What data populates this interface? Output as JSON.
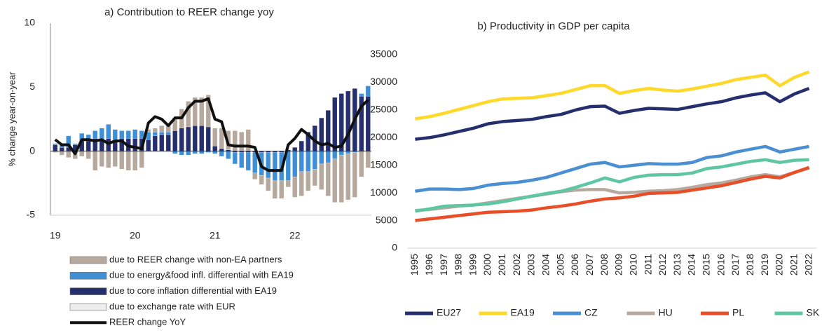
{
  "chart_data": [
    {
      "type": "bar",
      "stacked": true,
      "title": "a) Contribution to REER change yoy",
      "y_label": "% change year-on-year",
      "categories": [
        "19",
        null,
        null,
        null,
        null,
        null,
        null,
        null,
        null,
        null,
        null,
        null,
        "20",
        null,
        null,
        null,
        null,
        null,
        null,
        null,
        null,
        null,
        null,
        null,
        "21",
        null,
        null,
        null,
        null,
        null,
        null,
        null,
        null,
        null,
        null,
        null,
        "22",
        null,
        null,
        null,
        null,
        null,
        null,
        null,
        null,
        null,
        null,
        null
      ],
      "ylim": [
        -5,
        10
      ],
      "yticks": [
        -5,
        0,
        5,
        10
      ],
      "legend_position": "bottom",
      "series": [
        {
          "name": "due to REER change with non-EA partners",
          "color": "#b6a89c",
          "values": [
            -0.1,
            -0.3,
            -0.5,
            -0.6,
            -0.4,
            -0.6,
            -1.5,
            -1.2,
            -1.3,
            -1.2,
            -1.4,
            -1.5,
            -1.5,
            -1.3,
            0.2,
            0.3,
            0.5,
            0.7,
            1.0,
            1.5,
            2.0,
            2.2,
            2.2,
            2.5,
            1.4,
            1.6,
            1.5,
            1.6,
            1.5,
            1.7,
            -0.5,
            -0.7,
            -1.0,
            -1.4,
            -1.4,
            -0.5,
            -1.6,
            -1.9,
            -1.5,
            -1.3,
            -2.0,
            -2.6,
            -3.4,
            -3.7,
            -3.6,
            -3.5,
            -2.0,
            -1.3
          ]
        },
        {
          "name": "due to energy&food infl. differential with EA19",
          "color": "#3f8fd6",
          "values": [
            0.1,
            0.3,
            0.9,
            0.1,
            0.6,
            0.5,
            0.6,
            0.9,
            1.1,
            0.8,
            0.6,
            0.6,
            0.7,
            0.6,
            0.6,
            0.3,
            0.2,
            0.2,
            -0.2,
            -0.3,
            -0.3,
            -0.2,
            -0.2,
            -0.1,
            -0.2,
            -0.4,
            -0.6,
            -0.9,
            -1.2,
            -1.4,
            -1.6,
            -1.8,
            -2.0,
            -2.2,
            -2.2,
            -2.3,
            -2.0,
            -1.6,
            -1.6,
            -1.4,
            -1.0,
            -0.9,
            -0.6,
            -0.3,
            -0.2,
            -0.1,
            0.2,
            0.8
          ]
        },
        {
          "name": "due to core inflation differential with EA19",
          "color": "#262f6e",
          "values": [
            0.5,
            0.3,
            0.3,
            0.5,
            0.8,
            0.8,
            1.0,
            0.9,
            1.0,
            0.9,
            1.0,
            1.0,
            1.0,
            1.0,
            0.9,
            1.2,
            1.3,
            1.3,
            1.6,
            1.8,
            1.9,
            2.0,
            2.0,
            1.9,
            0.4,
            0.2,
            0.1,
            -0.1,
            -0.1,
            -0.1,
            -0.1,
            -0.1,
            -0.1,
            -0.1,
            -0.1,
            0.1,
            0.3,
            0.8,
            1.5,
            2.0,
            2.6,
            3.2,
            4.2,
            4.5,
            4.7,
            4.9,
            4.3,
            4.3
          ]
        },
        {
          "name": "due to exchange rate with EUR",
          "color": "#ececec",
          "values": [
            0,
            0,
            0,
            0,
            0,
            0,
            0,
            0,
            0,
            0,
            0,
            0,
            0,
            0,
            0,
            0,
            0,
            0,
            0,
            0,
            0,
            0,
            0,
            0,
            0,
            0,
            0,
            0,
            0,
            0,
            0,
            0,
            0,
            0,
            0,
            0,
            0,
            0,
            0,
            0,
            0,
            0,
            0,
            0,
            0,
            0,
            0,
            0
          ]
        },
        {
          "name": "REER change YoY",
          "type": "line",
          "color": "#111111",
          "values": [
            0.9,
            0.5,
            0.5,
            -0.2,
            0.9,
            0.9,
            0.8,
            0.9,
            0.6,
            0.8,
            0.8,
            0.4,
            0.3,
            0.2,
            2.2,
            2.7,
            2.5,
            2.0,
            2.6,
            2.6,
            3.4,
            3.9,
            3.9,
            4.1,
            2.5,
            2.3,
            0.5,
            0.4,
            0.4,
            0.4,
            0.3,
            -1.2,
            -1.5,
            -1.5,
            -1.5,
            0.5,
            1.0,
            1.7,
            1.3,
            0.8,
            0.5,
            0.6,
            0.3,
            0.4,
            1.3,
            2.5,
            3.5,
            4.0
          ]
        }
      ]
    },
    {
      "type": "line",
      "title": "b) Productivity in GDP per capita",
      "categories": [
        "1995",
        "1996",
        "1997",
        "1998",
        "1999",
        "2000",
        "2001",
        "2002",
        "2003",
        "2004",
        "2005",
        "2006",
        "2007",
        "2008",
        "2009",
        "2010",
        "2011",
        "2012",
        "2013",
        "2014",
        "2015",
        "2016",
        "2017",
        "2018",
        "2019",
        "2020",
        "2021",
        "2022"
      ],
      "ylim": [
        0,
        35000
      ],
      "yticks": [
        0,
        5000,
        10000,
        15000,
        20000,
        25000,
        30000,
        35000
      ],
      "legend_position": "bottom",
      "series": [
        {
          "name": "EU27",
          "color": "#262f6e",
          "values": [
            19700,
            20000,
            20500,
            21100,
            21700,
            22500,
            22900,
            23100,
            23300,
            23800,
            24200,
            25000,
            25600,
            25700,
            24400,
            24900,
            25300,
            25200,
            25100,
            25600,
            26100,
            26500,
            27200,
            27700,
            28100,
            26500,
            27900,
            28900
          ]
        },
        {
          "name": "EA19",
          "color": "#ffd92a",
          "values": [
            23400,
            23800,
            24400,
            25100,
            25800,
            26500,
            27000,
            27100,
            27200,
            27600,
            28000,
            28700,
            29400,
            29400,
            28000,
            28500,
            28900,
            28600,
            28400,
            28800,
            29300,
            29800,
            30500,
            30900,
            31300,
            29400,
            30900,
            31900
          ]
        },
        {
          "name": "CZ",
          "color": "#4a8fd2",
          "values": [
            10300,
            10700,
            10700,
            10600,
            10800,
            11400,
            11700,
            11900,
            12300,
            12800,
            13600,
            14400,
            15200,
            15500,
            14700,
            15000,
            15300,
            15200,
            15200,
            15500,
            16400,
            16700,
            17400,
            17900,
            18400,
            17400,
            17900,
            18400
          ]
        },
        {
          "name": "HU",
          "color": "#b6aaa0",
          "values": [
            6800,
            7000,
            7300,
            7600,
            7800,
            8200,
            8600,
            9000,
            9400,
            9800,
            10200,
            10500,
            10600,
            10600,
            10000,
            10100,
            10300,
            10400,
            10600,
            11000,
            11500,
            11800,
            12300,
            12900,
            13300,
            12900,
            13700,
            14500
          ]
        },
        {
          "name": "PL",
          "color": "#e84f28",
          "values": [
            5000,
            5300,
            5600,
            5900,
            6200,
            6500,
            6600,
            6700,
            6900,
            7300,
            7600,
            8000,
            8500,
            8900,
            9100,
            9400,
            9900,
            10000,
            10100,
            10500,
            10900,
            11300,
            11900,
            12500,
            13000,
            12700,
            13700,
            14600
          ]
        },
        {
          "name": "SK",
          "color": "#5ec6a2",
          "values": [
            6700,
            7100,
            7600,
            7700,
            7800,
            8000,
            8400,
            8900,
            9400,
            9900,
            10300,
            11000,
            11800,
            12700,
            12000,
            12800,
            13200,
            13300,
            13300,
            13600,
            14400,
            14700,
            15200,
            15700,
            16000,
            15500,
            15900,
            16000
          ]
        }
      ]
    }
  ]
}
